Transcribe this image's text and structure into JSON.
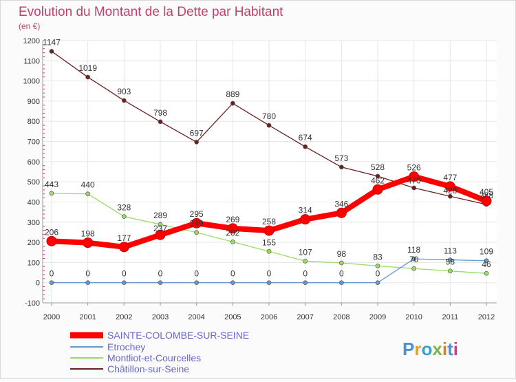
{
  "chart_data": {
    "type": "line",
    "title": "Evolution du Montant de la Dette par Habitant",
    "subtitle": "(en €)",
    "xlabel": "",
    "ylabel": "",
    "x": [
      "2000",
      "2001",
      "2002",
      "2003",
      "2004",
      "2005",
      "2006",
      "2007",
      "2008",
      "2009",
      "2010",
      "2011",
      "2012"
    ],
    "ylim": [
      -100,
      1200
    ],
    "y_ticks": [
      -100,
      0,
      100,
      200,
      300,
      400,
      500,
      600,
      700,
      800,
      900,
      1000,
      1100,
      1200
    ],
    "grid": true,
    "legend_position": "bottom-left",
    "series": [
      {
        "name": "SAINTE-COLOMBE-SUR-SEINE",
        "color": "#ff0000",
        "emphasis": true,
        "values": [
          206,
          198,
          177,
          237,
          295,
          269,
          258,
          314,
          346,
          462,
          526,
          477,
          405
        ],
        "labels": [
          "206",
          "198",
          "177",
          "",
          "295",
          "269",
          "258",
          "314",
          "346",
          "462",
          "526",
          "477",
          "405"
        ]
      },
      {
        "name": "Etrochey",
        "color": "#6699cc",
        "values": [
          0,
          0,
          0,
          0,
          0,
          0,
          0,
          0,
          0,
          0,
          118,
          113,
          109
        ],
        "labels": [
          "0",
          "0",
          "0",
          "0",
          "0",
          "0",
          "0",
          "0",
          "0",
          "0",
          "118",
          "113",
          "109"
        ]
      },
      {
        "name": "Montliot-et-Courcelles",
        "color": "#99dd66",
        "values": [
          443,
          440,
          328,
          289,
          249,
          202,
          155,
          107,
          98,
          83,
          70,
          58,
          46
        ],
        "labels": [
          "443",
          "440",
          "328",
          "289",
          "249",
          "202",
          "155",
          "107",
          "98",
          "83",
          "70",
          "58",
          "46"
        ]
      },
      {
        "name": "Châtillon-sur-Seine",
        "color": "#6b1f1f",
        "values": [
          1147,
          1019,
          903,
          798,
          697,
          889,
          780,
          674,
          573,
          528,
          470,
          428,
          388
        ],
        "labels": [
          "1147",
          "1019",
          "903",
          "798",
          "697",
          "889",
          "780",
          "674",
          "573",
          "528",
          "",
          "",
          "388"
        ]
      }
    ],
    "extra_labels": [
      "237",
      "470",
      "428"
    ]
  },
  "brand": {
    "text": "Proxiti",
    "letter_colors": [
      "#4a90d9",
      "#e8a020",
      "#3aa0d0",
      "#7ab648",
      "#e87a20",
      "#4a90d9",
      "#d04080"
    ]
  }
}
